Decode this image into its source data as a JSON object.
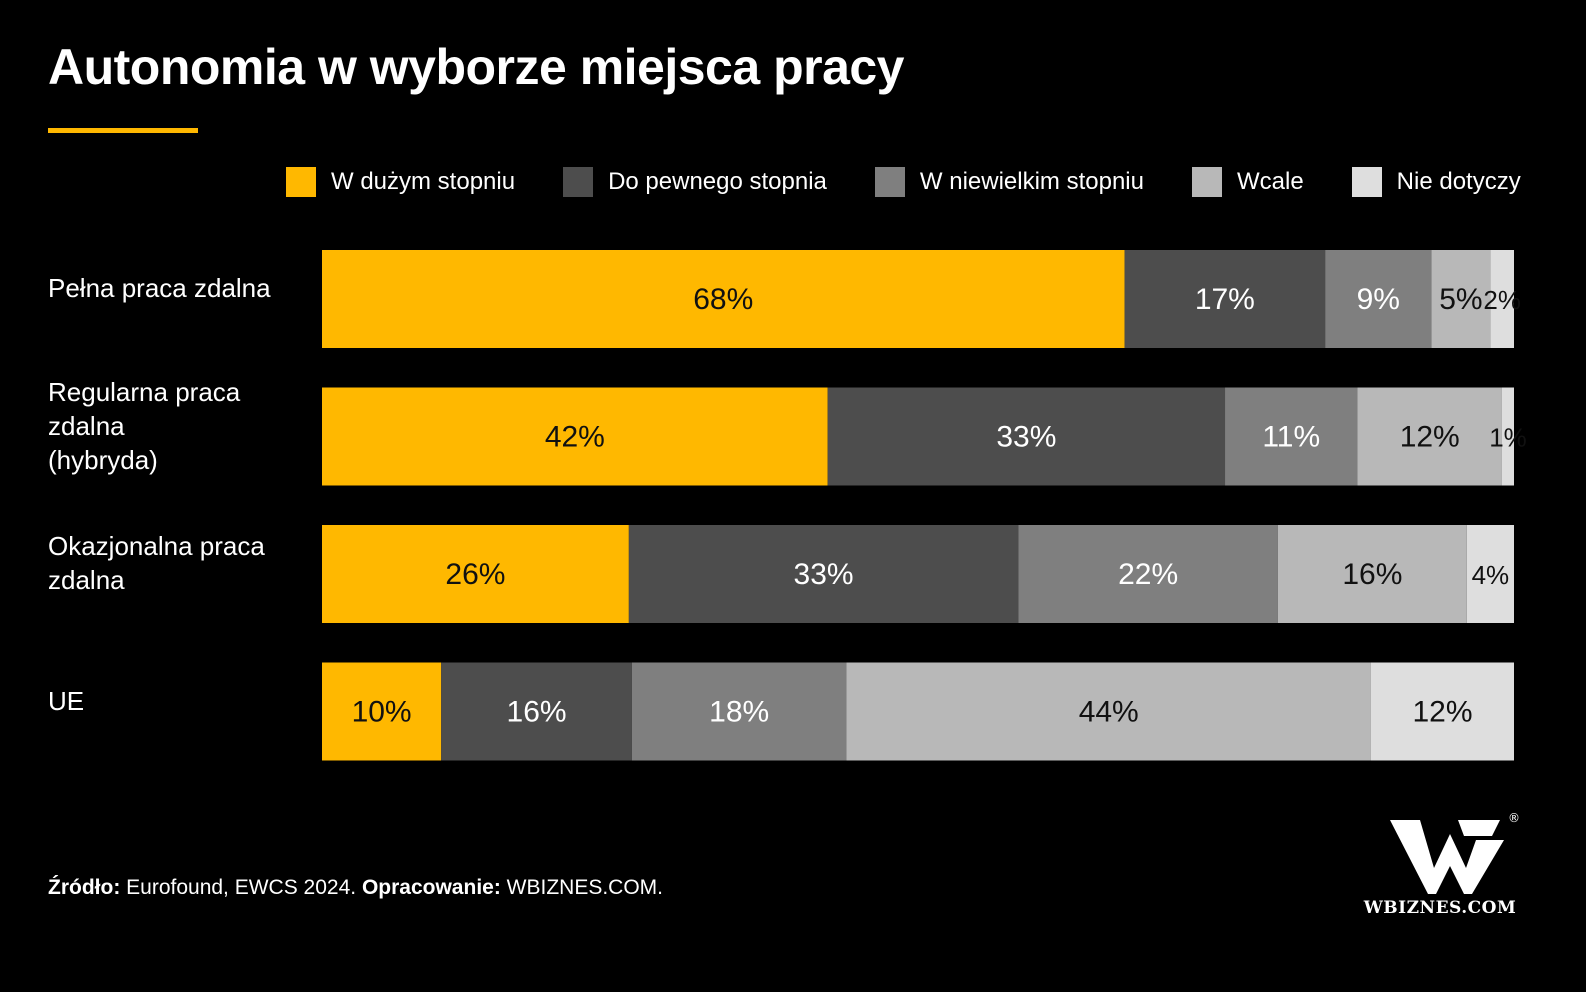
{
  "header": {
    "title": "Autonomia w wyborze miejsca pracy"
  },
  "colors": {
    "accent": "#FFB800",
    "series": [
      "#FFB800",
      "#4D4D4D",
      "#7F7F7F",
      "#B8B8B8",
      "#DEDEDE"
    ],
    "label_dark": "#111111",
    "label_light": "#FFFFFF"
  },
  "chart_data": {
    "type": "bar",
    "orientation": "horizontal",
    "stacked": true,
    "title": "Autonomia w wyborze miejsca pracy",
    "categories": [
      "Pełna praca zdalna",
      "Regularna praca zdalna\n(hybryda)",
      "Okazjonalna praca zdalna",
      "UE"
    ],
    "series": [
      {
        "name": "W dużym stopniu",
        "values": [
          68,
          42,
          26,
          10
        ]
      },
      {
        "name": "Do pewnego stopnia",
        "values": [
          17,
          33,
          33,
          16
        ]
      },
      {
        "name": "W niewielkim stopniu",
        "values": [
          9,
          11,
          22,
          18
        ]
      },
      {
        "name": "Wcale",
        "values": [
          5,
          12,
          16,
          44
        ]
      },
      {
        "name": "Nie dotyczy",
        "values": [
          2,
          1,
          4,
          12
        ]
      }
    ],
    "value_suffix": "%",
    "legend_position": "top",
    "grid": false
  },
  "footer": {
    "source_label": "Źródło:",
    "source_value": " Eurofound, EWCS 2024. ",
    "prepared_label": "Opracowanie:",
    "prepared_value": " WBIZNES.COM."
  },
  "logo": {
    "text": "WBIZNES.COM",
    "mark": "®"
  }
}
